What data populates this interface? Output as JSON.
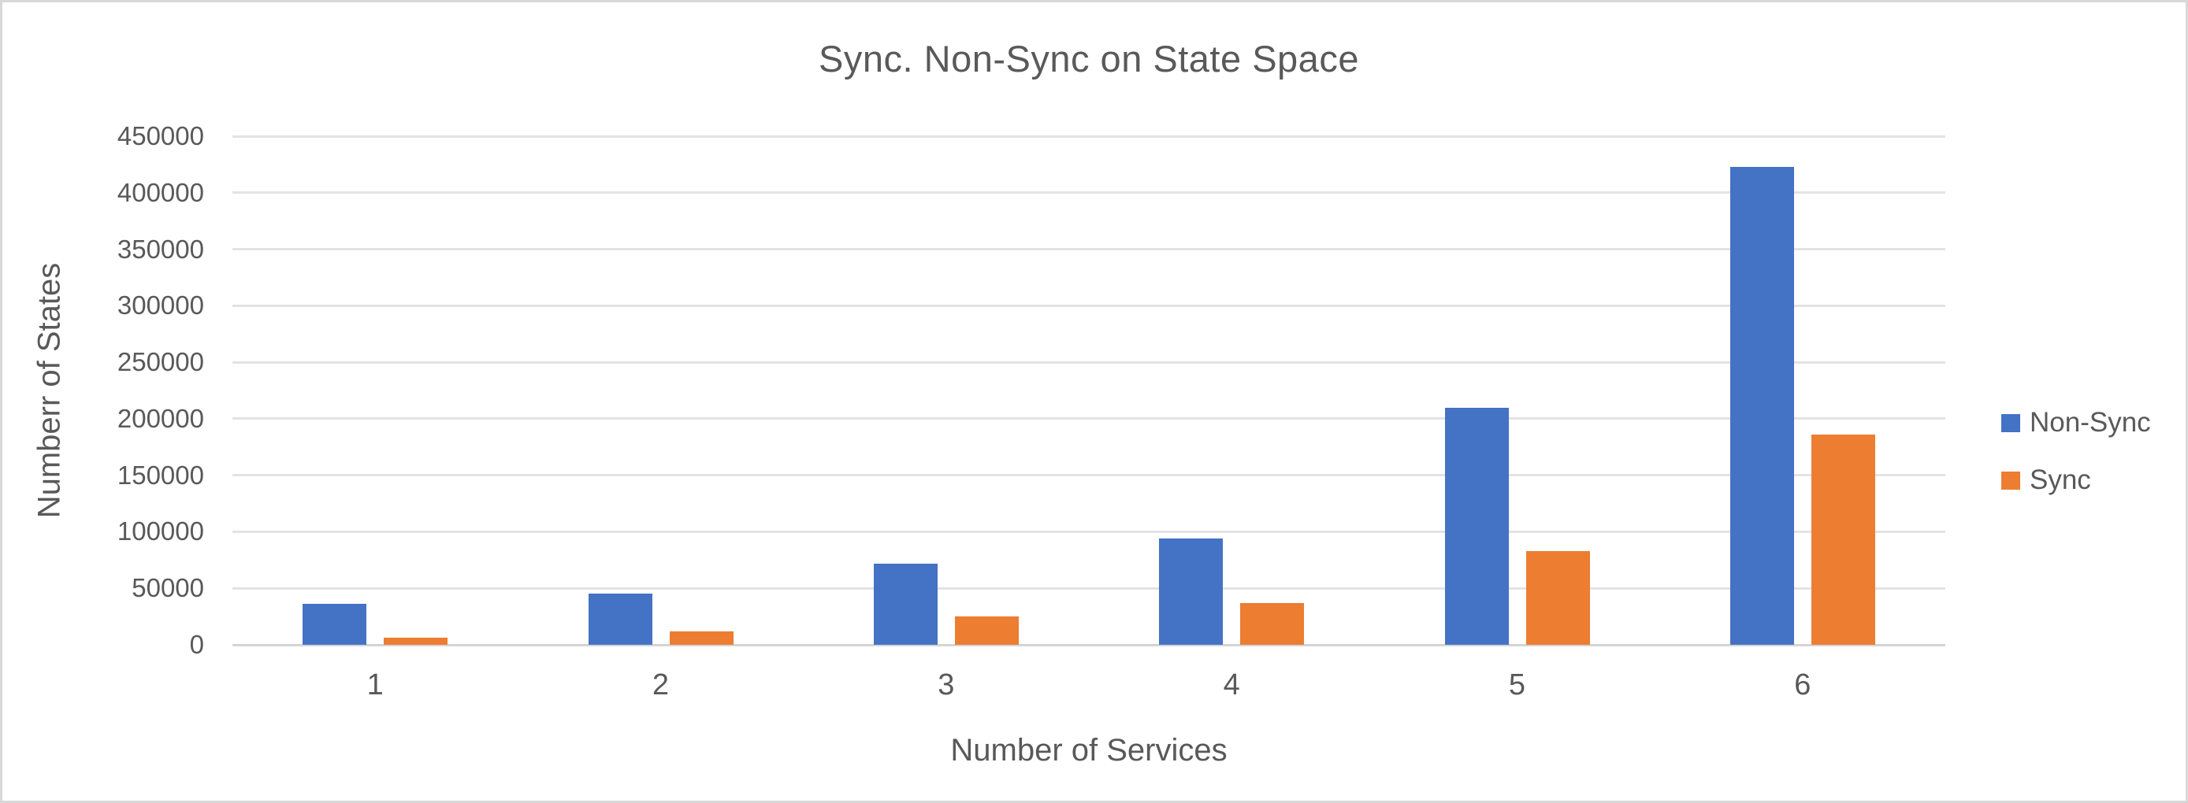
{
  "chart_data": {
    "type": "bar",
    "title": "Sync. Non-Sync on State Space",
    "xlabel": "Number of Services",
    "ylabel": "Numberr of States",
    "categories": [
      "1",
      "2",
      "3",
      "4",
      "5",
      "6"
    ],
    "series": [
      {
        "name": "Non-Sync",
        "color": "#4472C4",
        "values": [
          36500,
          45500,
          72000,
          94000,
          210000,
          423000
        ]
      },
      {
        "name": "Sync",
        "color": "#ED7D31",
        "values": [
          6000,
          12000,
          25000,
          37000,
          83000,
          186000
        ]
      }
    ],
    "ylim": [
      0,
      450000
    ],
    "ytick_step": 50000,
    "yticks": [
      "0",
      "50000",
      "100000",
      "150000",
      "200000",
      "250000",
      "300000",
      "350000",
      "400000",
      "450000"
    ],
    "grid": true,
    "legend_position": "right"
  },
  "colors": {
    "text": "#595959",
    "gridline": "#e3e3e3",
    "axis_line": "#d4d4d4",
    "frame_border": "#d8d8d8",
    "background": "#ffffff"
  }
}
